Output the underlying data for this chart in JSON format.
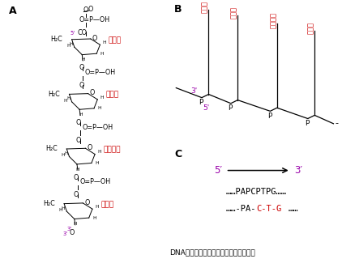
{
  "title": "DNA多核苷酸链的结构及其缩写式表示法",
  "label_A": "A",
  "label_B": "B",
  "label_C": "C",
  "bg_color": "#ffffff",
  "red_color": "#cc0000",
  "purple_color": "#9900aa",
  "black_color": "#000000",
  "gray_color": "#444444",
  "bases_B": [
    "腺嚅呐",
    "胞噸啖",
    "胸腺噸啖",
    "鸟嚅呐"
  ],
  "nucleotides_A": [
    "腺嚅呐",
    "胞噸啖",
    "胸腺噸啖",
    "鸟嚅呐"
  ],
  "prime5": "5′",
  "prime3": "3′",
  "line1_C": "……PAPCPTPG……",
  "line2_black1": "……-PA-",
  "line2_red": "C-T-G",
  "line2_black2": "……",
  "font_size_struct": 5.8,
  "font_size_label": 9.0,
  "font_size_base": 6.5,
  "font_size_text": 7.5
}
